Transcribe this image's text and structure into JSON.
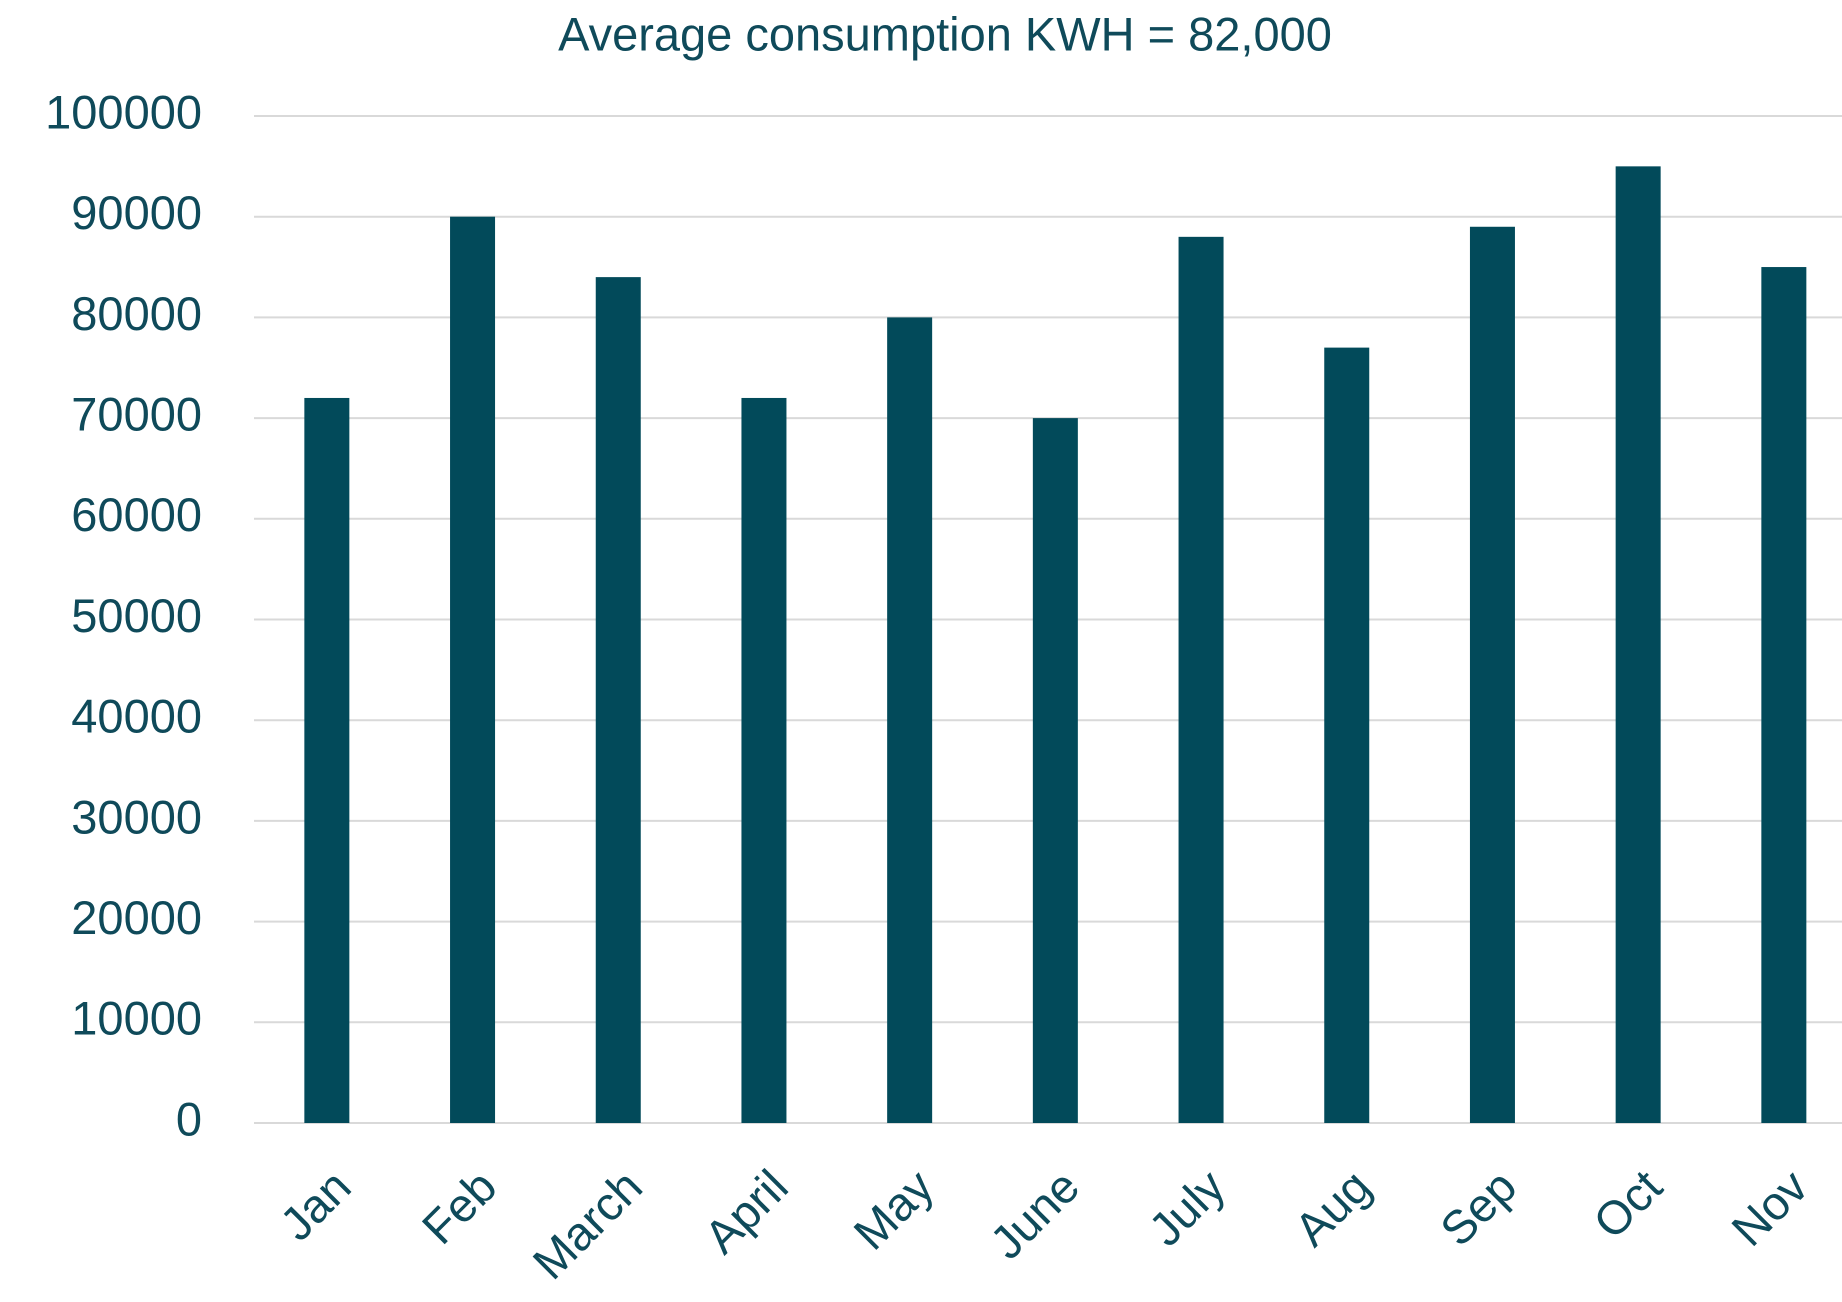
{
  "chart_data": {
    "type": "bar",
    "title": "Average consumption KWH = 82,000",
    "categories": [
      "Jan",
      "Feb",
      "March",
      "April",
      "May",
      "June",
      "July",
      "Aug",
      "Sep",
      "Oct",
      "Nov"
    ],
    "values": [
      72000,
      90000,
      84000,
      72000,
      80000,
      70000,
      88000,
      77000,
      89000,
      95000,
      85000
    ],
    "color": "#024a5a",
    "ylim": [
      0,
      100000
    ],
    "yticks": [
      0,
      10000,
      20000,
      30000,
      40000,
      50000,
      60000,
      70000,
      80000,
      90000,
      100000
    ],
    "grid": true
  }
}
